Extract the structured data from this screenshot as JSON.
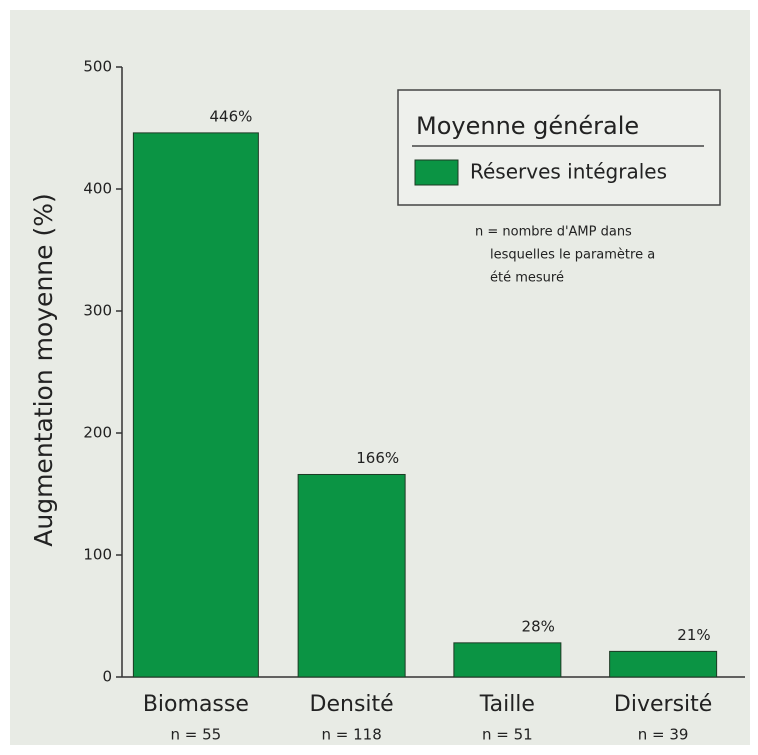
{
  "chart_data": {
    "type": "bar",
    "y_label": "Augmentation moyenne (%)",
    "legend_title": "Moyenne générale",
    "annotation": [
      "n = nombre d'AMP dans",
      "lesquelles le paramètre a",
      "été mesuré"
    ],
    "categories": [
      "Biomasse",
      "Densité",
      "Taille",
      "Diversité"
    ],
    "category_notes": [
      "n = 55",
      "n = 118",
      "n = 51",
      "n = 39"
    ],
    "series": [
      {
        "name": "Réserves intégrales",
        "color": "#0b9444",
        "values": [
          446,
          166,
          28,
          21
        ],
        "value_labels": [
          "446%",
          "166%",
          "28%",
          "21%"
        ]
      }
    ],
    "ylim": [
      0,
      500
    ],
    "yticks": [
      0,
      100,
      200,
      300,
      400,
      500
    ]
  }
}
